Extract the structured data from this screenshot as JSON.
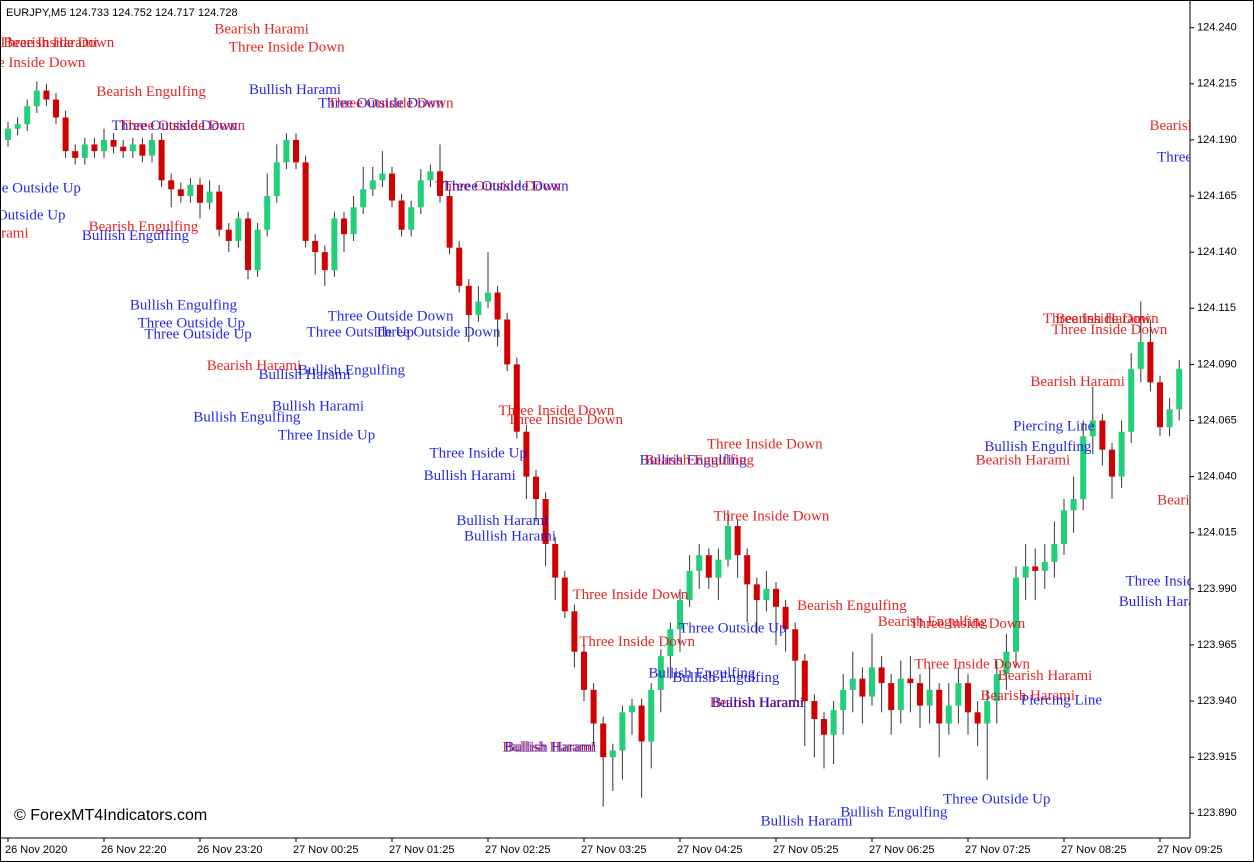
{
  "chart_data": {
    "type": "candlestick",
    "title": "EURJPY,M5  124.733 124.752 124.717 124.728",
    "watermark": "© ForexMT4Indicators.com",
    "up_color": "#22d07a",
    "down_color": "#d40000",
    "wick_color": "#333333",
    "ylim": [
      123.879,
      124.251
    ],
    "yticks": [
      {
        "value": 124.24,
        "label": "124.240"
      },
      {
        "value": 124.215,
        "label": "124.215"
      },
      {
        "value": 124.19,
        "label": "124.190"
      },
      {
        "value": 124.165,
        "label": "124.165"
      },
      {
        "value": 124.14,
        "label": "124.140"
      },
      {
        "value": 124.115,
        "label": "124.115"
      },
      {
        "value": 124.09,
        "label": "124.090"
      },
      {
        "value": 124.065,
        "label": "124.065"
      },
      {
        "value": 124.04,
        "label": "124.040"
      },
      {
        "value": 124.015,
        "label": "124.015"
      },
      {
        "value": 123.99,
        "label": "123.990"
      },
      {
        "value": 123.965,
        "label": "123.965"
      },
      {
        "value": 123.94,
        "label": "123.940"
      },
      {
        "value": 123.915,
        "label": "123.915"
      },
      {
        "value": 123.89,
        "label": "123.890"
      }
    ],
    "categories": [
      "26 Nov 2020",
      null,
      null,
      null,
      null,
      null,
      null,
      null,
      null,
      null,
      "26 Nov 22:20",
      null,
      null,
      null,
      null,
      null,
      null,
      null,
      null,
      null,
      "26 Nov 23:20",
      null,
      null,
      null,
      null,
      null,
      null,
      null,
      null,
      null,
      "27 Nov 00:25",
      null,
      null,
      null,
      null,
      null,
      null,
      null,
      null,
      null,
      "27 Nov 01:25",
      null,
      null,
      null,
      null,
      null,
      null,
      null,
      null,
      null,
      "27 Nov 02:25",
      null,
      null,
      null,
      null,
      null,
      null,
      null,
      null,
      null,
      "27 Nov 03:25",
      null,
      null,
      null,
      null,
      null,
      null,
      null,
      null,
      null,
      "27 Nov 04:25",
      null,
      null,
      null,
      null,
      null,
      null,
      null,
      null,
      null,
      "27 Nov 05:25",
      null,
      null,
      null,
      null,
      null,
      null,
      null,
      null,
      null,
      "27 Nov 06:25",
      null,
      null,
      null,
      null,
      null,
      null,
      null,
      null,
      null,
      "27 Nov 07:25",
      null,
      null,
      null,
      null,
      null,
      null,
      null,
      null,
      null,
      "27 Nov 08:25",
      null,
      null,
      null,
      null,
      null,
      null,
      null,
      null,
      null,
      "27 Nov 09:25",
      null,
      null
    ],
    "open": [
      124.19,
      124.195,
      124.197,
      124.205,
      124.212,
      124.208,
      124.2,
      124.185,
      124.182,
      124.188,
      124.185,
      124.19,
      124.187,
      124.185,
      124.188,
      124.183,
      124.19,
      124.172,
      124.168,
      124.165,
      124.17,
      124.162,
      124.167,
      124.15,
      124.145,
      124.155,
      124.132,
      124.15,
      124.165,
      124.18,
      124.19,
      124.18,
      124.145,
      124.14,
      124.132,
      124.155,
      124.148,
      124.16,
      124.168,
      124.172,
      124.175,
      124.163,
      124.15,
      124.16,
      124.172,
      124.176,
      124.165,
      124.142,
      124.125,
      124.112,
      124.118,
      124.122,
      124.11,
      124.09,
      124.06,
      124.04,
      124.03,
      124.01,
      123.995,
      123.98,
      123.962,
      123.945,
      123.93,
      123.915,
      123.918,
      123.935,
      123.938,
      123.922,
      123.945,
      123.96,
      123.972,
      123.985,
      123.998,
      124.005,
      123.995,
      124.003,
      124.018,
      124.005,
      123.992,
      123.985,
      123.99,
      123.982,
      123.972,
      123.958,
      123.94,
      123.932,
      123.925,
      123.936,
      123.945,
      123.95,
      123.942,
      123.955,
      123.948,
      123.936,
      123.95,
      123.948,
      123.938,
      123.945,
      123.93,
      123.938,
      123.948,
      123.935,
      123.93,
      123.94,
      123.952,
      123.962,
      123.995,
      124.0,
      123.998,
      124.002,
      124.01,
      124.025,
      124.03,
      124.058,
      124.065,
      124.052,
      124.04,
      124.06,
      124.088,
      124.1,
      124.082,
      124.062,
      124.07
    ],
    "high": [
      124.198,
      124.2,
      124.208,
      124.216,
      124.215,
      124.211,
      124.203,
      124.188,
      124.191,
      124.191,
      124.195,
      124.193,
      124.19,
      124.191,
      124.191,
      124.193,
      124.193,
      124.175,
      124.171,
      124.173,
      124.173,
      124.172,
      124.17,
      124.153,
      124.158,
      124.158,
      124.153,
      124.175,
      124.188,
      124.193,
      124.193,
      124.183,
      124.148,
      124.143,
      124.158,
      124.158,
      124.165,
      124.178,
      124.178,
      124.185,
      124.178,
      124.166,
      124.163,
      124.177,
      124.179,
      124.188,
      124.168,
      124.145,
      124.128,
      124.125,
      124.14,
      124.125,
      124.113,
      124.093,
      124.063,
      124.043,
      124.033,
      124.013,
      123.998,
      123.983,
      123.965,
      123.948,
      123.933,
      123.921,
      123.938,
      123.941,
      123.941,
      123.948,
      123.963,
      123.975,
      123.99,
      124.005,
      124.01,
      124.008,
      124.008,
      124.025,
      124.021,
      124.008,
      123.995,
      123.998,
      123.993,
      123.985,
      123.975,
      123.961,
      123.943,
      123.935,
      123.94,
      123.952,
      123.962,
      123.955,
      123.97,
      123.96,
      123.952,
      123.958,
      123.96,
      123.952,
      123.955,
      123.948,
      123.948,
      123.955,
      123.952,
      123.94,
      123.945,
      123.958,
      123.97,
      124.0,
      124.01,
      124.008,
      124.01,
      124.02,
      124.03,
      124.04,
      124.065,
      124.08,
      124.068,
      124.055,
      124.065,
      124.095,
      124.118,
      124.11,
      124.085,
      124.075,
      124.092
    ],
    "low": [
      124.187,
      124.192,
      124.194,
      124.202,
      124.205,
      124.197,
      124.182,
      124.179,
      124.179,
      124.182,
      124.182,
      124.184,
      124.182,
      124.182,
      124.18,
      124.18,
      124.169,
      124.16,
      124.162,
      124.162,
      124.155,
      124.159,
      124.147,
      124.14,
      124.142,
      124.128,
      124.129,
      124.147,
      124.162,
      124.177,
      124.177,
      124.142,
      124.13,
      124.125,
      124.129,
      124.14,
      124.145,
      124.157,
      124.165,
      124.169,
      124.16,
      124.147,
      124.147,
      124.157,
      124.169,
      124.162,
      124.139,
      124.122,
      124.1,
      124.109,
      124.115,
      124.098,
      124.087,
      124.057,
      124.03,
      124.02,
      124.0,
      123.985,
      123.977,
      123.955,
      123.94,
      123.92,
      123.893,
      123.9,
      123.905,
      123.925,
      123.897,
      123.91,
      123.935,
      123.95,
      123.962,
      123.982,
      123.99,
      123.99,
      123.985,
      124.0,
      123.995,
      123.975,
      123.97,
      123.98,
      123.965,
      123.962,
      123.94,
      123.92,
      123.915,
      123.91,
      123.912,
      123.925,
      123.935,
      123.93,
      123.938,
      123.935,
      123.925,
      123.93,
      123.935,
      123.928,
      123.93,
      123.915,
      123.925,
      123.93,
      123.925,
      123.92,
      123.905,
      123.93,
      123.945,
      123.955,
      123.985,
      123.985,
      123.99,
      123.995,
      124.005,
      124.015,
      124.025,
      124.05,
      124.045,
      124.03,
      124.035,
      124.055,
      124.082,
      124.078,
      124.058,
      124.058,
      124.065
    ],
    "close": [
      124.195,
      124.197,
      124.205,
      124.212,
      124.208,
      124.2,
      124.185,
      124.182,
      124.188,
      124.185,
      124.19,
      124.187,
      124.185,
      124.188,
      124.183,
      124.19,
      124.172,
      124.168,
      124.165,
      124.17,
      124.162,
      124.167,
      124.15,
      124.145,
      124.155,
      124.132,
      124.15,
      124.165,
      124.18,
      124.19,
      124.18,
      124.145,
      124.14,
      124.132,
      124.155,
      124.148,
      124.16,
      124.168,
      124.172,
      124.175,
      124.163,
      124.15,
      124.16,
      124.172,
      124.176,
      124.165,
      124.142,
      124.125,
      124.112,
      124.118,
      124.122,
      124.11,
      124.09,
      124.06,
      124.04,
      124.03,
      124.01,
      123.995,
      123.98,
      123.962,
      123.945,
      123.93,
      123.915,
      123.918,
      123.935,
      123.938,
      123.922,
      123.945,
      123.96,
      123.972,
      123.985,
      123.998,
      124.005,
      123.995,
      124.003,
      124.018,
      124.005,
      123.992,
      123.985,
      123.99,
      123.982,
      123.972,
      123.958,
      123.94,
      123.932,
      123.925,
      123.936,
      123.945,
      123.95,
      123.942,
      123.955,
      123.948,
      123.936,
      123.95,
      123.948,
      123.938,
      123.945,
      123.93,
      123.938,
      123.948,
      123.935,
      123.93,
      123.94,
      123.952,
      123.962,
      123.995,
      124.0,
      123.998,
      124.002,
      124.01,
      124.025,
      124.03,
      124.058,
      124.065,
      124.052,
      124.04,
      124.06,
      124.088,
      124.1,
      124.082,
      124.062,
      124.07,
      124.088
    ],
    "annotations": [
      {
        "text": "Bearish Harami",
        "color": "#e00000",
        "bar": 21.5,
        "price": 124.239
      },
      {
        "text": "Three Inside Down",
        "color": "#e00000",
        "bar": 23,
        "price": 124.231
      },
      {
        "text": "Three Inside Down",
        "color": "#e00000",
        "bar": -1,
        "price": 124.233
      },
      {
        "text": "Bearish Harami",
        "color": "#e00000",
        "bar": -0.5,
        "price": 124.233
      },
      {
        "text": "Three Inside Down",
        "color": "#e00000",
        "bar": -4,
        "price": 124.224
      },
      {
        "text": "Bearish Engulfing",
        "color": "#e00000",
        "bar": 9.2,
        "price": 124.211
      },
      {
        "text": "Bullish Harami",
        "color": "#0000e0",
        "bar": 25.1,
        "price": 124.212
      },
      {
        "text": "Three Outside Down",
        "color": "#0000e0",
        "bar": 32.3,
        "price": 124.206
      },
      {
        "text": "Three Outside Down",
        "color": "#e00000",
        "bar": 33.3,
        "price": 124.206
      },
      {
        "text": "Three Outside Down",
        "color": "#0000e0",
        "bar": 10.8,
        "price": 124.196
      },
      {
        "text": "Three Outside Down",
        "color": "#e00000",
        "bar": 11.6,
        "price": 124.196
      },
      {
        "text": "Three Outside Up",
        "color": "#0000e0",
        "bar": -3.6,
        "price": 124.168
      },
      {
        "text": "Three Outside Up",
        "color": "#0000e0",
        "bar": -5.2,
        "price": 124.156
      },
      {
        "text": "Bearish Harami",
        "color": "#e00000",
        "bar": -7.7,
        "price": 124.148
      },
      {
        "text": "Bearish Engulfing",
        "color": "#e00000",
        "bar": 8.4,
        "price": 124.151
      },
      {
        "text": "Bullish Engulfing",
        "color": "#0000e0",
        "bar": 7.7,
        "price": 124.147
      },
      {
        "text": "Three Outside Down",
        "color": "#e00000",
        "bar": 44.5,
        "price": 124.169
      },
      {
        "text": "Three Outside Down",
        "color": "#0000e0",
        "bar": 45.3,
        "price": 124.169
      },
      {
        "text": "Bullish Engulfing",
        "color": "#0000e0",
        "bar": 12.7,
        "price": 124.116
      },
      {
        "text": "Three Outside Up",
        "color": "#0000e0",
        "bar": 13.5,
        "price": 124.108
      },
      {
        "text": "Three Outside Up",
        "color": "#0000e0",
        "bar": 14.2,
        "price": 124.103
      },
      {
        "text": "Three Outside Down",
        "color": "#0000e0",
        "bar": 33.3,
        "price": 124.111
      },
      {
        "text": "Three Outside Up",
        "color": "#0000e0",
        "bar": 31.1,
        "price": 124.104
      },
      {
        "text": "Three Outside Down",
        "color": "#0000e0",
        "bar": 38.2,
        "price": 124.104
      },
      {
        "text": "Bearish Harami",
        "color": "#e00000",
        "bar": 20.7,
        "price": 124.089
      },
      {
        "text": "Bullish Harami",
        "color": "#0000e0",
        "bar": 26.1,
        "price": 124.085
      },
      {
        "text": "Bullish Engulfing",
        "color": "#0000e0",
        "bar": 30.2,
        "price": 124.087
      },
      {
        "text": "Bullish Engulfing",
        "color": "#0000e0",
        "bar": 19.3,
        "price": 124.066
      },
      {
        "text": "Bullish Harami",
        "color": "#0000e0",
        "bar": 27.5,
        "price": 124.071
      },
      {
        "text": "Three Inside Up",
        "color": "#0000e0",
        "bar": 28.1,
        "price": 124.058
      },
      {
        "text": "Three Inside Down",
        "color": "#e00000",
        "bar": 51.1,
        "price": 124.069
      },
      {
        "text": "Three Inside Down",
        "color": "#e00000",
        "bar": 52,
        "price": 124.065
      },
      {
        "text": "Three Inside Up",
        "color": "#0000e0",
        "bar": 43.9,
        "price": 124.05
      },
      {
        "text": "Bullish Harami",
        "color": "#0000e0",
        "bar": 43.3,
        "price": 124.04
      },
      {
        "text": "Bullish Harami",
        "color": "#0000e0",
        "bar": 46.7,
        "price": 124.02
      },
      {
        "text": "Bullish Harami",
        "color": "#0000e0",
        "bar": 47.5,
        "price": 124.013
      },
      {
        "text": "Bullish Engulfing",
        "color": "#0000e0",
        "bar": 65.8,
        "price": 124.047
      },
      {
        "text": "Bearish Engulfing",
        "color": "#e00000",
        "bar": 66.3,
        "price": 124.047
      },
      {
        "text": "Three Inside Down",
        "color": "#e00000",
        "bar": 72.8,
        "price": 124.054
      },
      {
        "text": "Three Inside Down",
        "color": "#e00000",
        "bar": 73.5,
        "price": 124.022
      },
      {
        "text": "Three Inside Down",
        "color": "#e00000",
        "bar": 58.8,
        "price": 123.987
      },
      {
        "text": "Three Inside Down",
        "color": "#e00000",
        "bar": 59.5,
        "price": 123.966
      },
      {
        "text": "Bearish Engulfing",
        "color": "#e00000",
        "bar": 82.2,
        "price": 123.982
      },
      {
        "text": "Three Outside Up",
        "color": "#0000e0",
        "bar": 69.9,
        "price": 123.972
      },
      {
        "text": "Bullish Engulfing",
        "color": "#0000e0",
        "bar": 66.7,
        "price": 123.952
      },
      {
        "text": "Bullish Engulfing",
        "color": "#0000e0",
        "bar": 69.2,
        "price": 123.95
      },
      {
        "text": "Bearish Harami",
        "color": "#e00000",
        "bar": 73.1,
        "price": 123.939
      },
      {
        "text": "Bullish Harami",
        "color": "#0000e0",
        "bar": 73.3,
        "price": 123.939
      },
      {
        "text": "Bullish Harami",
        "color": "#e00000",
        "bar": 51.5,
        "price": 123.919
      },
      {
        "text": "Bullish Harami",
        "color": "#0000e0",
        "bar": 51.7,
        "price": 123.919
      },
      {
        "text": "Bearish Engulfing",
        "color": "#e00000",
        "bar": 90.6,
        "price": 123.975
      },
      {
        "text": "Three Inside Down",
        "color": "#e00000",
        "bar": 93.9,
        "price": 123.974
      },
      {
        "text": "Three Inside Down",
        "color": "#e00000",
        "bar": 94.4,
        "price": 123.956
      },
      {
        "text": "Bearish Harami",
        "color": "#e00000",
        "bar": 103.1,
        "price": 123.951
      },
      {
        "text": "Bearish Harami",
        "color": "#e00000",
        "bar": 101.3,
        "price": 123.942
      },
      {
        "text": "Piercing Line",
        "color": "#0000e0",
        "bar": 105.5,
        "price": 123.94
      },
      {
        "text": "Three Outside Up",
        "color": "#0000e0",
        "bar": 97.4,
        "price": 123.896
      },
      {
        "text": "Bullish Engulfing",
        "color": "#0000e0",
        "bar": 86.7,
        "price": 123.89
      },
      {
        "text": "Bullish Harami",
        "color": "#0000e0",
        "bar": 78.4,
        "price": 123.886
      },
      {
        "text": "Piercing Line",
        "color": "#0000e0",
        "bar": 104.7,
        "price": 124.062
      },
      {
        "text": "Bullish Engulfing",
        "color": "#0000e0",
        "bar": 101.7,
        "price": 124.053
      },
      {
        "text": "Bearish Harami",
        "color": "#e00000",
        "bar": 100.8,
        "price": 124.047
      },
      {
        "text": "Bearish Harami",
        "color": "#e00000",
        "bar": 106.5,
        "price": 124.082
      },
      {
        "text": "Three Inside Down",
        "color": "#e00000",
        "bar": 108.7,
        "price": 124.105
      },
      {
        "text": "Three Inside Down",
        "color": "#e00000",
        "bar": 107.8,
        "price": 124.11
      },
      {
        "text": "Bearish Harami",
        "color": "#e00000",
        "bar": 109.1,
        "price": 124.11
      },
      {
        "text": "Bearish Harami",
        "color": "#e00000",
        "bar": 118.9,
        "price": 124.196
      },
      {
        "text": "Three Inside Up",
        "color": "#0000e0",
        "bar": 119.7,
        "price": 124.182
      },
      {
        "text": "Three Inside Up",
        "color": "#0000e0",
        "bar": 116.4,
        "price": 123.993
      },
      {
        "text": "Bullish Harami",
        "color": "#0000e0",
        "bar": 115.7,
        "price": 123.984
      },
      {
        "text": "Bearish Harami",
        "color": "#e00000",
        "bar": 119.7,
        "price": 124.029
      }
    ]
  }
}
